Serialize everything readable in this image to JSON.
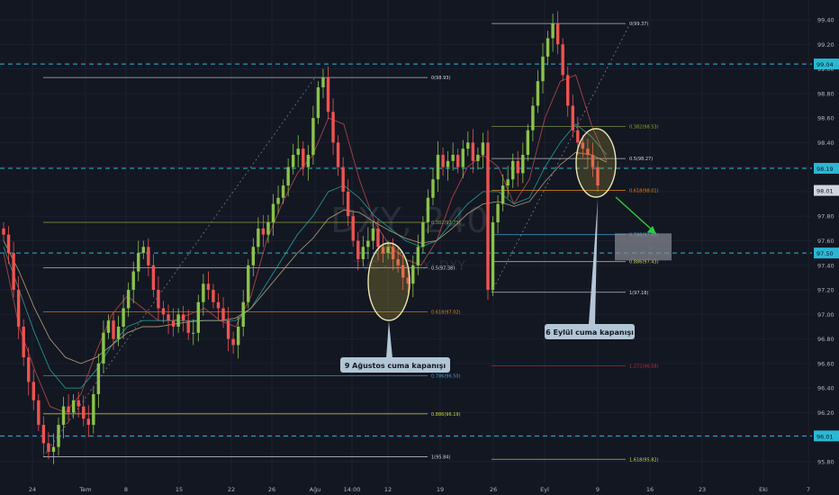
{
  "chart_data": {
    "type": "candlestick",
    "title": "",
    "watermark": {
      "symbol": "DXY, 240",
      "source": "TVC - INDEX: DXY"
    },
    "y_axis": {
      "ticks": [
        99.4,
        99.2,
        99.0,
        98.8,
        98.6,
        98.4,
        98.2,
        98.0,
        97.8,
        97.6,
        97.4,
        97.2,
        97.0,
        96.8,
        96.6,
        96.4,
        96.2,
        96.0,
        95.8
      ],
      "tick_labels": [
        "99.40",
        "99.20",
        "99.00",
        "98.80",
        "98.60",
        "98.40",
        "98.20",
        "98.00",
        "97.80",
        "97.60",
        "97.40",
        "97.20",
        "97.00",
        "96.80",
        "96.60",
        "96.40",
        "96.20",
        "96.00",
        "95.80"
      ],
      "ylim": [
        95.7,
        99.55
      ]
    },
    "x_axis": {
      "ticks": [
        "24",
        "Tem",
        "8",
        "15",
        "22",
        "26",
        "Ağu",
        "14:00",
        "12",
        "19",
        "26",
        "Eyl",
        "9",
        "16",
        "23",
        "Eki",
        "7"
      ]
    },
    "horizontal_levels": [
      {
        "value": 99.04,
        "label": "99.04",
        "color": "#2bb8d4",
        "style": "dashed"
      },
      {
        "value": 98.19,
        "label": "98.19",
        "color": "#2bb8d4",
        "style": "dashed"
      },
      {
        "value": 97.5,
        "label": "97.50",
        "color": "#2bb8d4",
        "style": "dashed"
      },
      {
        "value": 96.01,
        "label": "96.01",
        "color": "#2bb8d4",
        "style": "dashed"
      }
    ],
    "current_price": {
      "value": 98.01,
      "label": "98.01"
    },
    "fib_left": {
      "high": 98.93,
      "low": 95.84,
      "levels": [
        {
          "value": 98.93,
          "label": "0(98.93)",
          "color": "#d1d4dc"
        },
        {
          "value": 97.75,
          "label": "0.382(97.75)",
          "color": "#8fa33a"
        },
        {
          "value": 97.38,
          "label": "0.5(97.38)",
          "color": "#d1d4dc"
        },
        {
          "value": 97.02,
          "label": "0.618(97.02)",
          "color": "#e0881c"
        },
        {
          "value": 96.5,
          "label": "0.786(96.50)",
          "color": "#3fa0d8"
        },
        {
          "value": 96.19,
          "label": "0.886(96.19)",
          "color": "#c7d93a"
        },
        {
          "value": 95.84,
          "label": "1(95.84)",
          "color": "#d1d4dc"
        }
      ]
    },
    "fib_right": {
      "high": 99.37,
      "low": 97.18,
      "levels": [
        {
          "value": 99.37,
          "label": "0(99.37)",
          "color": "#d1d4dc"
        },
        {
          "value": 98.53,
          "label": "0.382(98.53)",
          "color": "#8fa33a"
        },
        {
          "value": 98.27,
          "label": "0.5(98.27)",
          "color": "#d1d4dc"
        },
        {
          "value": 98.01,
          "label": "0.618(98.01)",
          "color": "#e0881c"
        },
        {
          "value": 97.65,
          "label": "0.786(97.65)",
          "color": "#3fa0d8"
        },
        {
          "value": 97.43,
          "label": "0.886(97.43)",
          "color": "#c7d93a"
        },
        {
          "value": 97.18,
          "label": "1(97.18)",
          "color": "#d1d4dc"
        },
        {
          "value": 96.58,
          "label": "1.272(96.58)",
          "color": "#c42b2b"
        },
        {
          "value": 95.82,
          "label": "1.618(95.82)",
          "color": "#c7d93a"
        }
      ]
    },
    "annotations": [
      {
        "text": "9 Ağustos cuma kapanışı"
      },
      {
        "text": "6 Eylül cuma kapanışı"
      }
    ],
    "series": [
      {
        "name": "",
        "type": "candles",
        "values": [
          97.65,
          97.5,
          97.2,
          96.9,
          96.65,
          96.45,
          96.3,
          96.1,
          95.95,
          95.88,
          95.92,
          96.1,
          96.25,
          96.2,
          96.3,
          96.25,
          96.15,
          96.1,
          96.35,
          96.6,
          96.85,
          96.95,
          96.8,
          96.9,
          97.05,
          97.2,
          97.35,
          97.5,
          97.55,
          97.4,
          97.2,
          97.05,
          97.0,
          96.95,
          96.9,
          97.0,
          96.95,
          96.85,
          96.85,
          97.1,
          97.25,
          97.2,
          97.1,
          97.05,
          96.95,
          96.8,
          96.75,
          96.9,
          97.1,
          97.4,
          97.55,
          97.7,
          97.65,
          97.75,
          97.9,
          97.95,
          98.05,
          98.2,
          98.3,
          98.35,
          98.2,
          98.3,
          98.6,
          98.85,
          98.93,
          98.65,
          98.4,
          98.2,
          98.0,
          97.8,
          97.6,
          97.45,
          97.55,
          97.6,
          97.7,
          97.55,
          97.5,
          97.55,
          97.45,
          97.4,
          97.3,
          97.25,
          97.4,
          97.55,
          97.75,
          97.95,
          98.1,
          98.3,
          98.2,
          98.25,
          98.3,
          98.2,
          98.35,
          98.4,
          98.25,
          98.3,
          98.4,
          97.2,
          97.75,
          97.9,
          98.05,
          98.1,
          98.25,
          98.15,
          98.3,
          98.5,
          98.7,
          98.9,
          99.1,
          99.25,
          99.37,
          99.2,
          98.95,
          98.7,
          98.5,
          98.4,
          98.35,
          98.3,
          98.2,
          98.05
        ]
      },
      {
        "name": "",
        "type": "ma",
        "color": "#c24a4a",
        "values": [
          97.5,
          96.9,
          96.55,
          96.25,
          96.2,
          96.35,
          96.7,
          97.0,
          97.15,
          97.05,
          96.95,
          96.95,
          97.0,
          97.05,
          96.95,
          96.9,
          97.15,
          97.6,
          97.9,
          98.15,
          98.3,
          98.6,
          98.55,
          98.1,
          97.75,
          97.55,
          97.45,
          97.4,
          97.6,
          97.95,
          98.2,
          98.3,
          98.2,
          97.9,
          98.1,
          98.6,
          98.9,
          98.95,
          98.55,
          98.25
        ]
      },
      {
        "name": "",
        "type": "ma",
        "color": "#26a69a",
        "values": [
          97.55,
          97.2,
          96.85,
          96.55,
          96.4,
          96.4,
          96.55,
          96.75,
          96.9,
          96.95,
          96.95,
          96.95,
          96.95,
          96.95,
          96.95,
          96.95,
          97.05,
          97.25,
          97.45,
          97.65,
          97.8,
          98.0,
          98.05,
          97.95,
          97.8,
          97.7,
          97.6,
          97.55,
          97.6,
          97.75,
          97.9,
          98.0,
          98.0,
          97.9,
          97.95,
          98.2,
          98.4,
          98.55,
          98.45,
          98.3
        ]
      },
      {
        "name": "",
        "type": "ma",
        "color": "#b8a57a",
        "values": [
          97.6,
          97.35,
          97.05,
          96.8,
          96.65,
          96.6,
          96.65,
          96.75,
          96.85,
          96.9,
          96.9,
          96.92,
          96.94,
          96.95,
          96.95,
          96.97,
          97.05,
          97.2,
          97.35,
          97.5,
          97.62,
          97.78,
          97.85,
          97.83,
          97.75,
          97.68,
          97.62,
          97.58,
          97.6,
          97.7,
          97.82,
          97.9,
          97.92,
          97.88,
          97.92,
          98.08,
          98.22,
          98.32,
          98.3,
          98.24
        ]
      }
    ]
  }
}
